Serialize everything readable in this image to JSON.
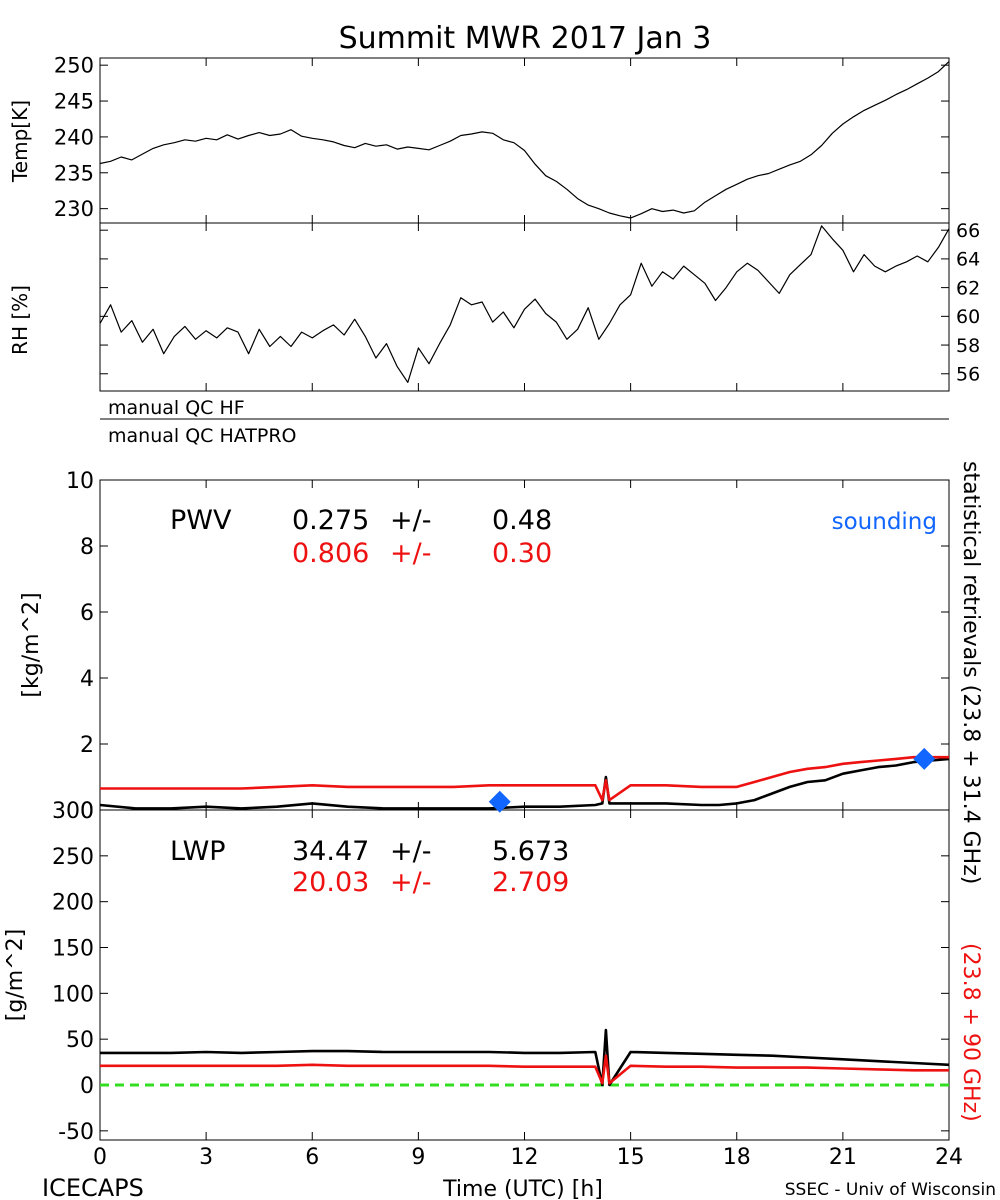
{
  "title": "Summit MWR 2017 Jan  3",
  "footer": {
    "left": "ICECAPS",
    "right": "SSEC - Univ of Wisconsin"
  },
  "colors": {
    "hf": "#000000",
    "hatpro": "#ee1111",
    "sounding": "#1166ff",
    "zero_line": "#33dd22",
    "axis": "#000000"
  },
  "qc": {
    "hf_label": "manual QC HF",
    "hatpro_label": "manual QC HATPRO"
  },
  "side_labels": {
    "right_black": "statistical retrievals (23.8 + 31.4 GHz)",
    "right_red": "(23.8 + 90 GHz)"
  },
  "chart_data": [
    {
      "type": "line",
      "id": "temp",
      "ylabel": "Temp[K]",
      "ylim": [
        228,
        251
      ],
      "yticks": [
        "230",
        "235",
        "240",
        "245",
        "250"
      ],
      "xlim": [
        0,
        24
      ],
      "series": [
        {
          "x": [
            0,
            0.3,
            0.6,
            0.9,
            1.2,
            1.5,
            1.8,
            2.1,
            2.4,
            2.7,
            3.0,
            3.3,
            3.6,
            3.9,
            4.2,
            4.5,
            4.8,
            5.1,
            5.4,
            5.7,
            6.0,
            6.3,
            6.6,
            6.9,
            7.2,
            7.5,
            7.8,
            8.1,
            8.4,
            8.7,
            9.0,
            9.3,
            9.6,
            9.9,
            10.2,
            10.5,
            10.8,
            11.1,
            11.4,
            11.7,
            12.0,
            12.3,
            12.6,
            12.9,
            13.2,
            13.5,
            13.8,
            14.1,
            14.4,
            14.7,
            15.0,
            15.3,
            15.6,
            15.9,
            16.2,
            16.5,
            16.8,
            17.1,
            17.4,
            17.7,
            18.0,
            18.3,
            18.6,
            18.9,
            19.2,
            19.5,
            19.8,
            20.1,
            20.4,
            20.7,
            21.0,
            21.3,
            21.6,
            21.9,
            22.2,
            22.5,
            22.8,
            23.1,
            23.4,
            23.7,
            24.0
          ],
          "values": [
            236.3,
            236.6,
            237.2,
            236.8,
            237.6,
            238.4,
            238.9,
            239.2,
            239.6,
            239.4,
            239.8,
            239.6,
            240.3,
            239.7,
            240.2,
            240.6,
            240.2,
            240.4,
            241.0,
            240.1,
            239.8,
            239.6,
            239.3,
            238.8,
            238.5,
            239.1,
            238.7,
            238.9,
            238.3,
            238.6,
            238.4,
            238.2,
            238.8,
            239.4,
            240.2,
            240.4,
            240.7,
            240.5,
            239.6,
            239.2,
            238.1,
            236.2,
            234.6,
            233.8,
            232.7,
            231.4,
            230.5,
            230.0,
            229.4,
            229.0,
            228.7,
            229.3,
            230.0,
            229.6,
            229.8,
            229.4,
            229.7,
            230.9,
            231.8,
            232.7,
            233.4,
            234.1,
            234.6,
            234.9,
            235.5,
            236.1,
            236.6,
            237.5,
            238.8,
            240.5,
            241.8,
            242.8,
            243.7,
            244.4,
            245.1,
            245.9,
            246.6,
            247.4,
            248.2,
            249.1,
            250.5
          ]
        }
      ]
    },
    {
      "type": "line",
      "id": "rh",
      "ylabel": "RH [%]",
      "ylim": [
        54.8,
        66.5
      ],
      "yticks": [
        "56",
        "58",
        "60",
        "62",
        "64",
        "66"
      ],
      "xlim": [
        0,
        24
      ],
      "series": [
        {
          "x": [
            0,
            0.3,
            0.6,
            0.9,
            1.2,
            1.5,
            1.8,
            2.1,
            2.4,
            2.7,
            3.0,
            3.3,
            3.6,
            3.9,
            4.2,
            4.5,
            4.8,
            5.1,
            5.4,
            5.7,
            6.0,
            6.3,
            6.6,
            6.9,
            7.2,
            7.5,
            7.8,
            8.1,
            8.4,
            8.7,
            9.0,
            9.3,
            9.6,
            9.9,
            10.2,
            10.5,
            10.8,
            11.1,
            11.4,
            11.7,
            12.0,
            12.3,
            12.6,
            12.9,
            13.2,
            13.5,
            13.8,
            14.1,
            14.4,
            14.7,
            15.0,
            15.3,
            15.6,
            15.9,
            16.2,
            16.5,
            16.8,
            17.1,
            17.4,
            17.7,
            18.0,
            18.3,
            18.6,
            18.9,
            19.2,
            19.5,
            19.8,
            20.1,
            20.4,
            20.7,
            21.0,
            21.3,
            21.6,
            21.9,
            22.2,
            22.5,
            22.8,
            23.1,
            23.4,
            23.7,
            24.0
          ],
          "values": [
            59.5,
            60.8,
            58.9,
            59.7,
            58.2,
            59.1,
            57.4,
            58.6,
            59.3,
            58.4,
            59.0,
            58.5,
            59.2,
            58.9,
            57.4,
            59.1,
            57.9,
            58.6,
            57.9,
            58.9,
            58.5,
            59.0,
            59.4,
            58.7,
            59.8,
            58.6,
            57.1,
            58.1,
            56.5,
            55.4,
            57.8,
            56.7,
            58.1,
            59.4,
            61.3,
            60.8,
            61.0,
            59.6,
            60.3,
            59.2,
            60.5,
            61.2,
            60.2,
            59.6,
            58.4,
            59.1,
            60.6,
            58.4,
            59.5,
            60.8,
            61.5,
            63.7,
            62.1,
            63.1,
            62.6,
            63.5,
            62.9,
            62.3,
            61.1,
            62.0,
            63.1,
            63.7,
            63.2,
            62.4,
            61.6,
            62.9,
            63.6,
            64.3,
            66.3,
            65.4,
            64.6,
            63.1,
            64.3,
            63.5,
            63.1,
            63.5,
            63.8,
            64.2,
            63.8,
            64.8,
            66.1
          ]
        }
      ]
    },
    {
      "type": "line",
      "id": "pwv",
      "ylabel": "[kg/m^2]",
      "ylim": [
        0,
        10
      ],
      "yticks": [
        "0",
        "2",
        "4",
        "6",
        "8",
        "10"
      ],
      "xlim": [
        0,
        24
      ],
      "annotation": {
        "label": "PWV",
        "stats": [
          {
            "mean": "0.275",
            "pm": "+/-",
            "sd": "0.48"
          },
          {
            "mean": "0.806",
            "pm": "+/-",
            "sd": "0.30"
          }
        ]
      },
      "legend": {
        "label": "sounding",
        "position": "top-right"
      },
      "sounding": {
        "x": [
          11.3,
          23.3
        ],
        "values": [
          0.25,
          1.55
        ]
      },
      "series": [
        {
          "x": [
            0,
            1,
            2,
            3,
            4,
            5,
            6,
            7,
            8,
            9,
            10,
            11,
            12,
            13,
            14,
            14.2,
            14.3,
            14.4,
            15,
            16,
            17,
            17.5,
            18,
            18.5,
            19,
            19.5,
            20,
            20.5,
            21,
            21.5,
            22,
            22.5,
            23,
            23.5,
            24
          ],
          "values": [
            0.15,
            0.05,
            0.05,
            0.1,
            0.05,
            0.1,
            0.2,
            0.1,
            0.05,
            0.05,
            0.05,
            0.05,
            0.1,
            0.1,
            0.15,
            0.2,
            1.0,
            0.2,
            0.2,
            0.2,
            0.15,
            0.15,
            0.2,
            0.3,
            0.5,
            0.7,
            0.85,
            0.9,
            1.1,
            1.2,
            1.3,
            1.35,
            1.45,
            1.5,
            1.55
          ]
        },
        {
          "x": [
            0,
            1,
            2,
            3,
            4,
            5,
            6,
            7,
            8,
            9,
            10,
            11,
            12,
            13,
            14,
            14.2,
            14.3,
            14.4,
            15,
            16,
            17,
            17.5,
            18,
            18.5,
            19,
            19.5,
            20,
            20.5,
            21,
            21.5,
            22,
            22.5,
            23,
            23.5,
            24
          ],
          "values": [
            0.65,
            0.65,
            0.65,
            0.65,
            0.65,
            0.7,
            0.75,
            0.7,
            0.7,
            0.7,
            0.7,
            0.75,
            0.75,
            0.75,
            0.75,
            0.3,
            0.9,
            0.3,
            0.75,
            0.75,
            0.7,
            0.7,
            0.7,
            0.85,
            1.0,
            1.15,
            1.25,
            1.3,
            1.4,
            1.45,
            1.5,
            1.55,
            1.6,
            1.6,
            1.6
          ]
        }
      ]
    },
    {
      "type": "line",
      "id": "lwp",
      "ylabel": "[g/m^2]",
      "xlabel": "Time (UTC) [h]",
      "ylim": [
        -60,
        300
      ],
      "yticks": [
        "-50",
        "0",
        "50",
        "100",
        "150",
        "200",
        "250",
        "300"
      ],
      "xlim": [
        0,
        24
      ],
      "xticks": [
        "0",
        "3",
        "6",
        "9",
        "12",
        "15",
        "18",
        "21",
        "24"
      ],
      "annotation": {
        "label": "LWP",
        "stats": [
          {
            "mean": "34.47",
            "pm": "+/-",
            "sd": "5.673"
          },
          {
            "mean": "20.03",
            "pm": "+/-",
            "sd": "2.709"
          }
        ]
      },
      "zero_line": 0,
      "series": [
        {
          "x": [
            0,
            1,
            2,
            3,
            4,
            5,
            6,
            7,
            8,
            9,
            10,
            11,
            12,
            13,
            14,
            14.2,
            14.3,
            14.4,
            15,
            16,
            17,
            18,
            19,
            20,
            21,
            22,
            23,
            24
          ],
          "values": [
            35,
            35,
            35,
            36,
            35,
            36,
            37,
            37,
            36,
            36,
            36,
            36,
            35,
            35,
            36,
            0,
            60,
            0,
            36,
            35,
            34,
            33,
            32,
            30,
            28,
            26,
            24,
            22
          ]
        },
        {
          "x": [
            0,
            1,
            2,
            3,
            4,
            5,
            6,
            7,
            8,
            9,
            10,
            11,
            12,
            13,
            14,
            14.2,
            14.3,
            14.4,
            15,
            16,
            17,
            18,
            19,
            20,
            21,
            22,
            23,
            24
          ],
          "values": [
            21,
            21,
            21,
            21,
            21,
            21,
            22,
            21,
            21,
            21,
            21,
            21,
            20,
            20,
            20,
            2,
            32,
            2,
            21,
            20,
            20,
            19,
            19,
            19,
            18,
            17,
            16,
            16
          ]
        }
      ]
    }
  ]
}
